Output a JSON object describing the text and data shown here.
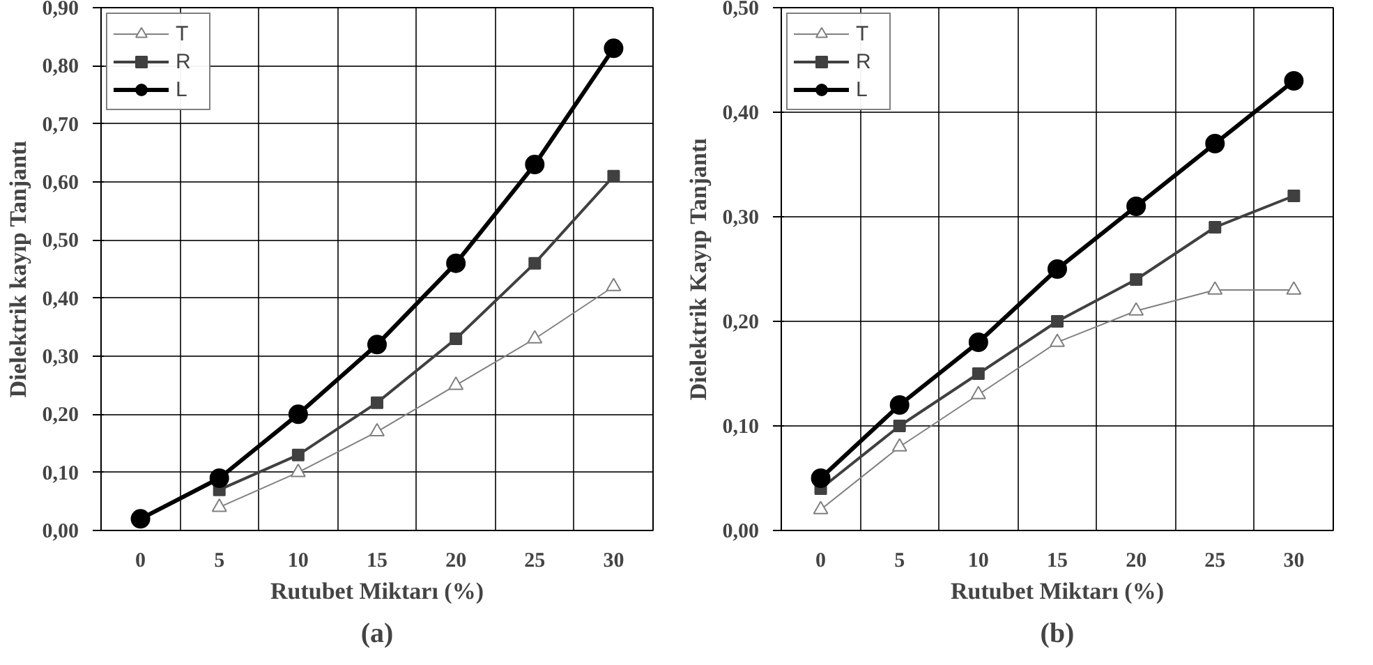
{
  "chart_data": [
    {
      "type": "line",
      "title": "(a)",
      "xlabel": "Rutubet Miktarı (%)",
      "ylabel": "Dielektrik kayıp Tanjantı",
      "categories": [
        "0",
        "5",
        "10",
        "15",
        "20",
        "25",
        "30"
      ],
      "ylim": [
        0,
        0.9
      ],
      "yticks": [
        {
          "value": 0,
          "label": "0,00"
        },
        {
          "value": 0.1,
          "label": "0,10"
        },
        {
          "value": 0.2,
          "label": "0,20"
        },
        {
          "value": 0.3,
          "label": "0,30"
        },
        {
          "value": 0.4,
          "label": "0,40"
        },
        {
          "value": 0.5,
          "label": "0,50"
        },
        {
          "value": 0.6,
          "label": "0,60"
        },
        {
          "value": 0.7,
          "label": "0,70"
        },
        {
          "value": 0.8,
          "label": "0,80"
        },
        {
          "value": 0.9,
          "label": "0,90"
        }
      ],
      "grid": true,
      "legend": "top left",
      "series": [
        {
          "name": "T",
          "color": "#808080",
          "marker": "triangle",
          "values": [
            null,
            0.04,
            0.1,
            0.17,
            0.25,
            0.33,
            0.42
          ]
        },
        {
          "name": "R",
          "color": "#404040",
          "marker": "square",
          "values": [
            null,
            0.07,
            0.13,
            0.22,
            0.33,
            0.46,
            0.61
          ]
        },
        {
          "name": "L",
          "color": "#000000",
          "marker": "circle",
          "values": [
            0.02,
            0.09,
            0.2,
            0.32,
            0.46,
            0.63,
            0.83
          ]
        }
      ]
    },
    {
      "type": "line",
      "title": "(b)",
      "xlabel": "Rutubet Miktarı (%)",
      "ylabel": "Dielektrik Kayıp Tanjantı",
      "categories": [
        "0",
        "5",
        "10",
        "15",
        "20",
        "25",
        "30"
      ],
      "ylim": [
        0,
        0.5
      ],
      "yticks": [
        {
          "value": 0,
          "label": "0,00"
        },
        {
          "value": 0.1,
          "label": "0,10"
        },
        {
          "value": 0.2,
          "label": "0,20"
        },
        {
          "value": 0.3,
          "label": "0,30"
        },
        {
          "value": 0.4,
          "label": "0,40"
        },
        {
          "value": 0.5,
          "label": "0,50"
        }
      ],
      "grid": true,
      "legend": "top left",
      "series": [
        {
          "name": "T",
          "color": "#808080",
          "marker": "triangle",
          "values": [
            0.02,
            0.08,
            0.13,
            0.18,
            0.21,
            0.23,
            0.23
          ]
        },
        {
          "name": "R",
          "color": "#404040",
          "marker": "square",
          "values": [
            0.04,
            0.1,
            0.15,
            0.2,
            0.24,
            0.29,
            0.32
          ]
        },
        {
          "name": "L",
          "color": "#000000",
          "marker": "circle",
          "values": [
            0.05,
            0.12,
            0.18,
            0.25,
            0.31,
            0.37,
            0.43
          ]
        }
      ]
    }
  ]
}
